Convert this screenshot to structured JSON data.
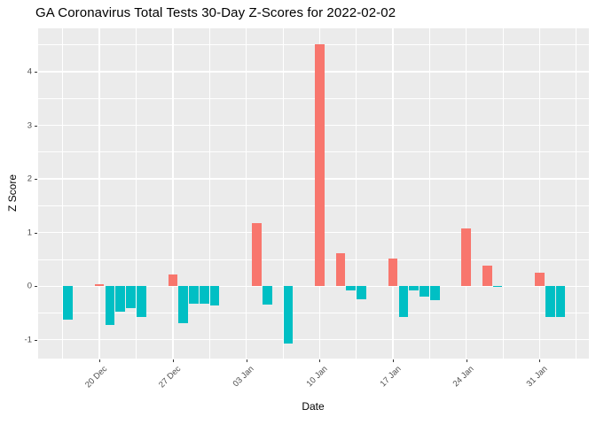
{
  "chart_data": {
    "type": "bar",
    "title": "GA Coronavirus Total Tests 30-Day Z-Scores for 2022-02-02",
    "xlabel": "Date",
    "ylabel": "Z Score",
    "legend": "none",
    "panel_background": "#ebebeb",
    "grid_color": "#ffffff",
    "grid": "on",
    "colors": {
      "positive": "#F8766D",
      "negative": "#00BFC4",
      "tick_text": "#4d4d4d",
      "tick_mark": "#333333"
    },
    "y_ticks": [
      -1,
      0,
      1,
      2,
      3,
      4
    ],
    "y_minor_ticks": [
      -0.5,
      0.5,
      1.5,
      2.5,
      3.5,
      4.5
    ],
    "ylim": [
      -1.35,
      4.81
    ],
    "x_ticks": [
      {
        "label": "20 Dec",
        "day": 0
      },
      {
        "label": "27 Dec",
        "day": 7
      },
      {
        "label": "03 Jan",
        "day": 14
      },
      {
        "label": "10 Jan",
        "day": 21
      },
      {
        "label": "17 Jan",
        "day": 28
      },
      {
        "label": "24 Jan",
        "day": 35
      },
      {
        "label": "31 Jan",
        "day": 42
      }
    ],
    "x_minor_tick_days": [
      -3.5,
      3.5,
      10.5,
      17.5,
      24.5,
      31.5,
      38.5,
      45.5
    ],
    "xlim_days": [
      -5.85,
      46.7
    ],
    "bars": [
      {
        "date": "2021-12-17",
        "day": -3,
        "value": -0.63
      },
      {
        "date": "2021-12-20",
        "day": 0,
        "value": 0.03
      },
      {
        "date": "2021-12-21",
        "day": 1,
        "value": -0.73
      },
      {
        "date": "2021-12-22",
        "day": 2,
        "value": -0.48
      },
      {
        "date": "2021-12-23",
        "day": 3,
        "value": -0.41
      },
      {
        "date": "2021-12-24",
        "day": 4,
        "value": -0.58
      },
      {
        "date": "2021-12-27",
        "day": 7,
        "value": 0.22
      },
      {
        "date": "2021-12-28",
        "day": 8,
        "value": -0.69
      },
      {
        "date": "2021-12-29",
        "day": 9,
        "value": -0.33
      },
      {
        "date": "2021-12-30",
        "day": 10,
        "value": -0.32
      },
      {
        "date": "2021-12-31",
        "day": 11,
        "value": -0.36
      },
      {
        "date": "2022-01-04",
        "day": 15,
        "value": 1.18
      },
      {
        "date": "2022-01-05",
        "day": 16,
        "value": -0.34
      },
      {
        "date": "2022-01-07",
        "day": 18,
        "value": -1.07
      },
      {
        "date": "2022-01-10",
        "day": 21,
        "value": 4.51
      },
      {
        "date": "2022-01-12",
        "day": 23,
        "value": 0.62
      },
      {
        "date": "2022-01-13",
        "day": 24,
        "value": -0.08
      },
      {
        "date": "2022-01-14",
        "day": 25,
        "value": -0.24
      },
      {
        "date": "2022-01-17",
        "day": 28,
        "value": 0.51
      },
      {
        "date": "2022-01-18",
        "day": 29,
        "value": -0.57
      },
      {
        "date": "2022-01-19",
        "day": 30,
        "value": -0.08
      },
      {
        "date": "2022-01-20",
        "day": 31,
        "value": -0.2
      },
      {
        "date": "2022-01-21",
        "day": 32,
        "value": -0.26
      },
      {
        "date": "2022-01-24",
        "day": 35,
        "value": 1.07
      },
      {
        "date": "2022-01-26",
        "day": 37,
        "value": 0.39
      },
      {
        "date": "2022-01-27",
        "day": 38,
        "value": -0.02
      },
      {
        "date": "2022-01-31",
        "day": 42,
        "value": 0.26
      },
      {
        "date": "2022-02-01",
        "day": 43,
        "value": -0.58
      },
      {
        "date": "2022-02-02",
        "day": 44,
        "value": -0.58
      }
    ]
  }
}
